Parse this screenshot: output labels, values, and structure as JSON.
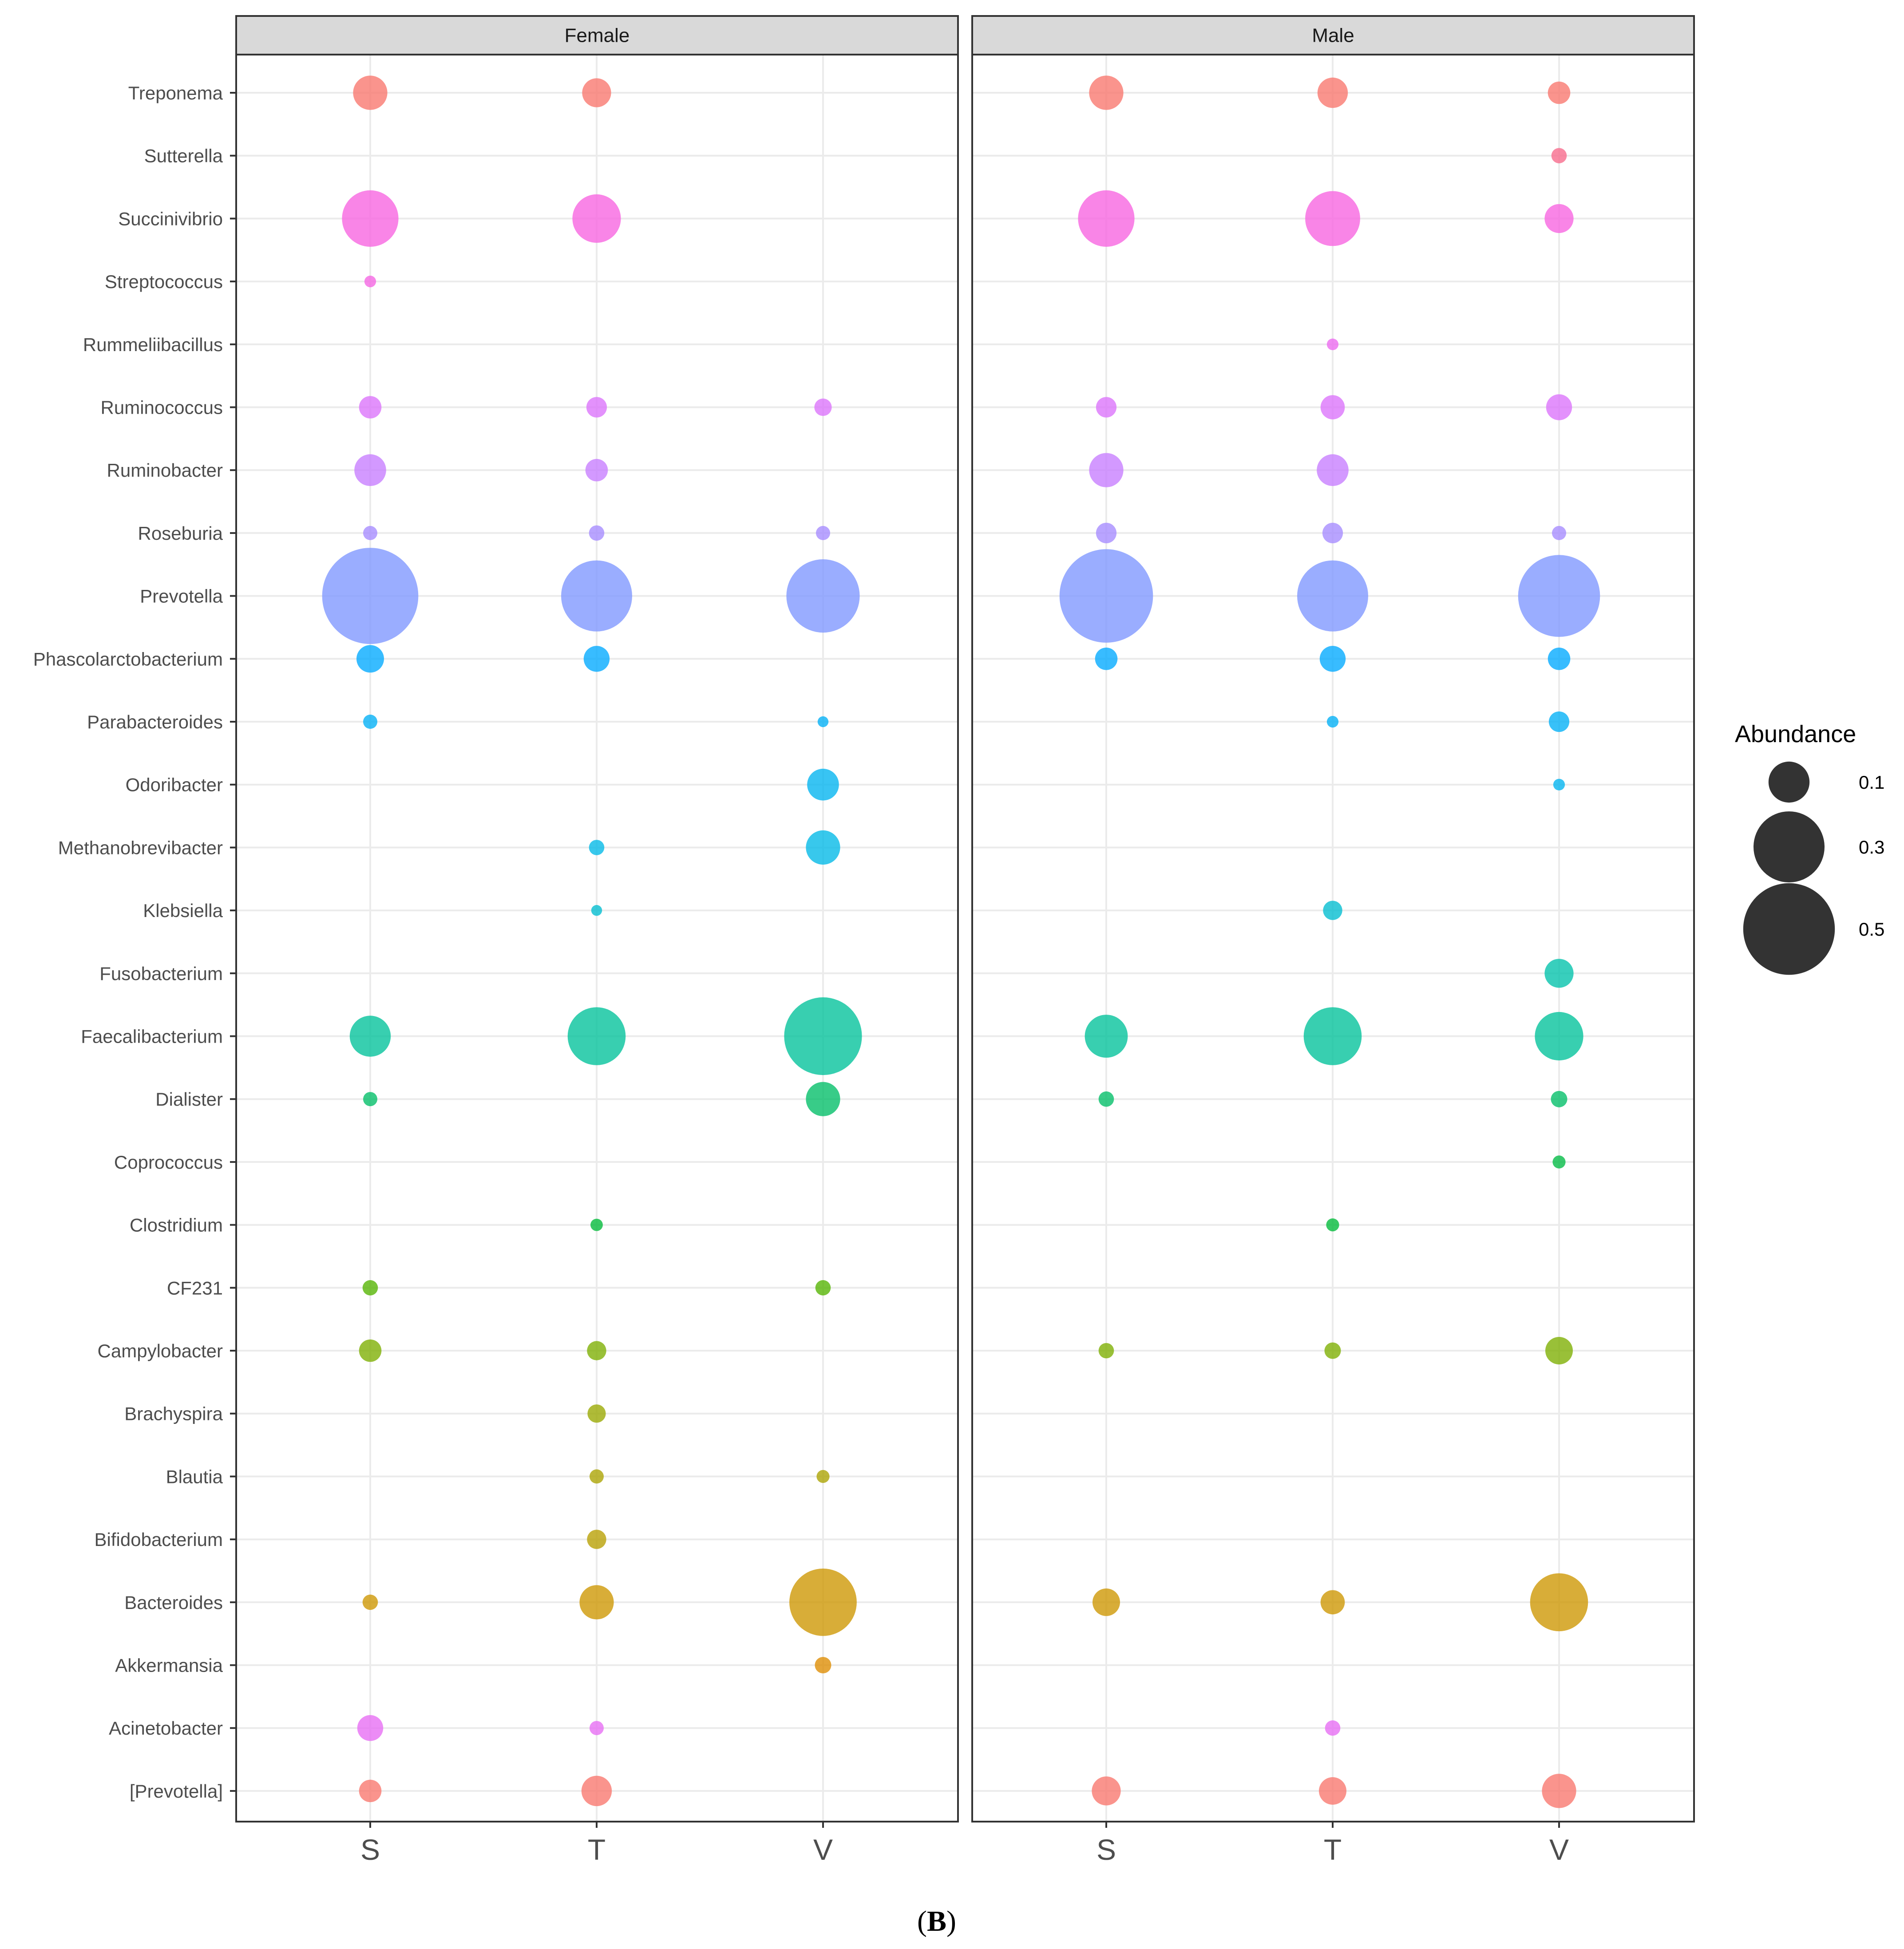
{
  "figure_label": {
    "open": "(",
    "letter": "B",
    "close": ")"
  },
  "chart_data": {
    "type": "scatter",
    "title": "",
    "xlabel": "",
    "ylabel": "",
    "panels": [
      "Female",
      "Male"
    ],
    "x_categories": [
      "S",
      "T",
      "V"
    ],
    "y_categories": [
      "Treponema",
      "Sutterella",
      "Succinivibrio",
      "Streptococcus",
      "Rummeliibacillus",
      "Ruminococcus",
      "Ruminobacter",
      "Roseburia",
      "Prevotella",
      "Phascolarctobacterium",
      "Parabacteroides",
      "Odoribacter",
      "Methanobrevibacter",
      "Klebsiella",
      "Fusobacterium",
      "Faecalibacterium",
      "Dialister",
      "Coprococcus",
      "Clostridium",
      "CF231",
      "Campylobacter",
      "Brachyspira",
      "Blautia",
      "Bifidobacterium",
      "Bacteroides",
      "Akkermansia",
      "Acinetobacter",
      "[Prevotella]"
    ],
    "genus_colors": {
      "Treponema": "#F8766D",
      "Sutterella": "#F7698A",
      "Succinivibrio": "#F763E0",
      "Streptococcus": "#F564E3",
      "Rummeliibacillus": "#EC69EF",
      "Ruminococcus": "#DB72FB",
      "Ruminobacter": "#C77CFF",
      "Roseburia": "#A58AFF",
      "Prevotella": "#7E96FF",
      "Phascolarctobacterium": "#00A9FF",
      "Parabacteroides": "#00B0F6",
      "Odoribacter": "#00B4EF",
      "Methanobrevibacter": "#00B8E7",
      "Klebsiella": "#00BDD0",
      "Fusobacterium": "#00C1AA",
      "Faecalibacterium": "#00C19A",
      "Dialister": "#00BE67",
      "Coprococcus": "#00BA42",
      "Clostridium": "#00BA38",
      "CF231": "#53B400",
      "Campylobacter": "#7CAE00",
      "Brachyspira": "#99A800",
      "Blautia": "#ABA300",
      "Bifidobacterium": "#B79F00",
      "Bacteroides": "#CD9600",
      "Akkermansia": "#DE8C00",
      "Acinetobacter": "#E76BF3",
      "[Prevotella]": "#F8766D"
    },
    "size_legend": {
      "title": "Abundance",
      "breaks": [
        0.1,
        0.3,
        0.5
      ],
      "labels": [
        "0.1",
        "0.3",
        "0.5"
      ]
    },
    "points": [
      {
        "panel": "Female",
        "x": "S",
        "genus": "Treponema",
        "abundance": 0.07
      },
      {
        "panel": "Female",
        "x": "T",
        "genus": "Treponema",
        "abundance": 0.05
      },
      {
        "panel": "Female",
        "x": "S",
        "genus": "Succinivibrio",
        "abundance": 0.19
      },
      {
        "panel": "Female",
        "x": "T",
        "genus": "Succinivibrio",
        "abundance": 0.14
      },
      {
        "panel": "Female",
        "x": "S",
        "genus": "Streptococcus",
        "abundance": 0.008
      },
      {
        "panel": "Female",
        "x": "S",
        "genus": "Ruminococcus",
        "abundance": 0.03
      },
      {
        "panel": "Female",
        "x": "T",
        "genus": "Ruminococcus",
        "abundance": 0.025
      },
      {
        "panel": "Female",
        "x": "V",
        "genus": "Ruminococcus",
        "abundance": 0.018
      },
      {
        "panel": "Female",
        "x": "S",
        "genus": "Ruminobacter",
        "abundance": 0.06
      },
      {
        "panel": "Female",
        "x": "T",
        "genus": "Ruminobacter",
        "abundance": 0.03
      },
      {
        "panel": "Female",
        "x": "S",
        "genus": "Roseburia",
        "abundance": 0.012
      },
      {
        "panel": "Female",
        "x": "T",
        "genus": "Roseburia",
        "abundance": 0.014
      },
      {
        "panel": "Female",
        "x": "V",
        "genus": "Roseburia",
        "abundance": 0.012
      },
      {
        "panel": "Female",
        "x": "S",
        "genus": "Prevotella",
        "abundance": 0.55
      },
      {
        "panel": "Female",
        "x": "T",
        "genus": "Prevotella",
        "abundance": 0.3
      },
      {
        "panel": "Female",
        "x": "V",
        "genus": "Prevotella",
        "abundance": 0.32
      },
      {
        "panel": "Female",
        "x": "S",
        "genus": "Phascolarctobacterium",
        "abundance": 0.045
      },
      {
        "panel": "Female",
        "x": "T",
        "genus": "Phascolarctobacterium",
        "abundance": 0.04
      },
      {
        "panel": "Female",
        "x": "S",
        "genus": "Parabacteroides",
        "abundance": 0.012
      },
      {
        "panel": "Female",
        "x": "V",
        "genus": "Parabacteroides",
        "abundance": 0.007
      },
      {
        "panel": "Female",
        "x": "V",
        "genus": "Odoribacter",
        "abundance": 0.06
      },
      {
        "panel": "Female",
        "x": "T",
        "genus": "Methanobrevibacter",
        "abundance": 0.014
      },
      {
        "panel": "Female",
        "x": "V",
        "genus": "Methanobrevibacter",
        "abundance": 0.07
      },
      {
        "panel": "Female",
        "x": "T",
        "genus": "Klebsiella",
        "abundance": 0.007
      },
      {
        "panel": "Female",
        "x": "S",
        "genus": "Faecalibacterium",
        "abundance": 0.1
      },
      {
        "panel": "Female",
        "x": "T",
        "genus": "Faecalibacterium",
        "abundance": 0.2
      },
      {
        "panel": "Female",
        "x": "V",
        "genus": "Faecalibacterium",
        "abundance": 0.36
      },
      {
        "panel": "Female",
        "x": "S",
        "genus": "Dialister",
        "abundance": 0.012
      },
      {
        "panel": "Female",
        "x": "V",
        "genus": "Dialister",
        "abundance": 0.07
      },
      {
        "panel": "Female",
        "x": "T",
        "genus": "Clostridium",
        "abundance": 0.009
      },
      {
        "panel": "Female",
        "x": "S",
        "genus": "CF231",
        "abundance": 0.014
      },
      {
        "panel": "Female",
        "x": "V",
        "genus": "CF231",
        "abundance": 0.014
      },
      {
        "panel": "Female",
        "x": "S",
        "genus": "Campylobacter",
        "abundance": 0.03
      },
      {
        "panel": "Female",
        "x": "T",
        "genus": "Campylobacter",
        "abundance": 0.022
      },
      {
        "panel": "Female",
        "x": "T",
        "genus": "Brachyspira",
        "abundance": 0.02
      },
      {
        "panel": "Female",
        "x": "T",
        "genus": "Blautia",
        "abundance": 0.012
      },
      {
        "panel": "Female",
        "x": "V",
        "genus": "Blautia",
        "abundance": 0.01
      },
      {
        "panel": "Female",
        "x": "T",
        "genus": "Bifidobacterium",
        "abundance": 0.022
      },
      {
        "panel": "Female",
        "x": "S",
        "genus": "Bacteroides",
        "abundance": 0.014
      },
      {
        "panel": "Female",
        "x": "T",
        "genus": "Bacteroides",
        "abundance": 0.07
      },
      {
        "panel": "Female",
        "x": "V",
        "genus": "Bacteroides",
        "abundance": 0.27
      },
      {
        "panel": "Female",
        "x": "V",
        "genus": "Akkermansia",
        "abundance": 0.016
      },
      {
        "panel": "Female",
        "x": "S",
        "genus": "Acinetobacter",
        "abundance": 0.04
      },
      {
        "panel": "Female",
        "x": "T",
        "genus": "Acinetobacter",
        "abundance": 0.012
      },
      {
        "panel": "Female",
        "x": "S",
        "genus": "[Prevotella]",
        "abundance": 0.03
      },
      {
        "panel": "Female",
        "x": "T",
        "genus": "[Prevotella]",
        "abundance": 0.055
      },
      {
        "panel": "Male",
        "x": "S",
        "genus": "Treponema",
        "abundance": 0.07
      },
      {
        "panel": "Male",
        "x": "T",
        "genus": "Treponema",
        "abundance": 0.055
      },
      {
        "panel": "Male",
        "x": "V",
        "genus": "Treponema",
        "abundance": 0.03
      },
      {
        "panel": "Male",
        "x": "V",
        "genus": "Sutterella",
        "abundance": 0.014
      },
      {
        "panel": "Male",
        "x": "S",
        "genus": "Succinivibrio",
        "abundance": 0.19
      },
      {
        "panel": "Male",
        "x": "T",
        "genus": "Succinivibrio",
        "abundance": 0.18
      },
      {
        "panel": "Male",
        "x": "V",
        "genus": "Succinivibrio",
        "abundance": 0.05
      },
      {
        "panel": "Male",
        "x": "T",
        "genus": "Rummeliibacillus",
        "abundance": 0.008
      },
      {
        "panel": "Male",
        "x": "S",
        "genus": "Ruminococcus",
        "abundance": 0.025
      },
      {
        "panel": "Male",
        "x": "T",
        "genus": "Ruminococcus",
        "abundance": 0.035
      },
      {
        "panel": "Male",
        "x": "V",
        "genus": "Ruminococcus",
        "abundance": 0.04
      },
      {
        "panel": "Male",
        "x": "S",
        "genus": "Ruminobacter",
        "abundance": 0.07
      },
      {
        "panel": "Male",
        "x": "T",
        "genus": "Ruminobacter",
        "abundance": 0.06
      },
      {
        "panel": "Male",
        "x": "S",
        "genus": "Roseburia",
        "abundance": 0.025
      },
      {
        "panel": "Male",
        "x": "T",
        "genus": "Roseburia",
        "abundance": 0.025
      },
      {
        "panel": "Male",
        "x": "V",
        "genus": "Roseburia",
        "abundance": 0.012
      },
      {
        "panel": "Male",
        "x": "S",
        "genus": "Prevotella",
        "abundance": 0.52
      },
      {
        "panel": "Male",
        "x": "T",
        "genus": "Prevotella",
        "abundance": 0.3
      },
      {
        "panel": "Male",
        "x": "V",
        "genus": "Prevotella",
        "abundance": 0.4
      },
      {
        "panel": "Male",
        "x": "S",
        "genus": "Phascolarctobacterium",
        "abundance": 0.03
      },
      {
        "panel": "Male",
        "x": "T",
        "genus": "Phascolarctobacterium",
        "abundance": 0.04
      },
      {
        "panel": "Male",
        "x": "V",
        "genus": "Phascolarctobacterium",
        "abundance": 0.03
      },
      {
        "panel": "Male",
        "x": "T",
        "genus": "Parabacteroides",
        "abundance": 0.008
      },
      {
        "panel": "Male",
        "x": "V",
        "genus": "Parabacteroides",
        "abundance": 0.025
      },
      {
        "panel": "Male",
        "x": "V",
        "genus": "Odoribacter",
        "abundance": 0.008
      },
      {
        "panel": "Male",
        "x": "T",
        "genus": "Klebsiella",
        "abundance": 0.022
      },
      {
        "panel": "Male",
        "x": "V",
        "genus": "Fusobacterium",
        "abundance": 0.05
      },
      {
        "panel": "Male",
        "x": "S",
        "genus": "Faecalibacterium",
        "abundance": 0.11
      },
      {
        "panel": "Male",
        "x": "T",
        "genus": "Faecalibacterium",
        "abundance": 0.2
      },
      {
        "panel": "Male",
        "x": "V",
        "genus": "Faecalibacterium",
        "abundance": 0.14
      },
      {
        "panel": "Male",
        "x": "S",
        "genus": "Dialister",
        "abundance": 0.014
      },
      {
        "panel": "Male",
        "x": "V",
        "genus": "Dialister",
        "abundance": 0.016
      },
      {
        "panel": "Male",
        "x": "V",
        "genus": "Coprococcus",
        "abundance": 0.01
      },
      {
        "panel": "Male",
        "x": "T",
        "genus": "Clostridium",
        "abundance": 0.01
      },
      {
        "panel": "Male",
        "x": "S",
        "genus": "Campylobacter",
        "abundance": 0.014
      },
      {
        "panel": "Male",
        "x": "T",
        "genus": "Campylobacter",
        "abundance": 0.016
      },
      {
        "panel": "Male",
        "x": "V",
        "genus": "Campylobacter",
        "abundance": 0.045
      },
      {
        "panel": "Male",
        "x": "S",
        "genus": "Bacteroides",
        "abundance": 0.045
      },
      {
        "panel": "Male",
        "x": "T",
        "genus": "Bacteroides",
        "abundance": 0.035
      },
      {
        "panel": "Male",
        "x": "V",
        "genus": "Bacteroides",
        "abundance": 0.2
      },
      {
        "panel": "Male",
        "x": "T",
        "genus": "Acinetobacter",
        "abundance": 0.014
      },
      {
        "panel": "Male",
        "x": "S",
        "genus": "[Prevotella]",
        "abundance": 0.05
      },
      {
        "panel": "Male",
        "x": "T",
        "genus": "[Prevotella]",
        "abundance": 0.045
      },
      {
        "panel": "Male",
        "x": "V",
        "genus": "[Prevotella]",
        "abundance": 0.07
      }
    ]
  }
}
